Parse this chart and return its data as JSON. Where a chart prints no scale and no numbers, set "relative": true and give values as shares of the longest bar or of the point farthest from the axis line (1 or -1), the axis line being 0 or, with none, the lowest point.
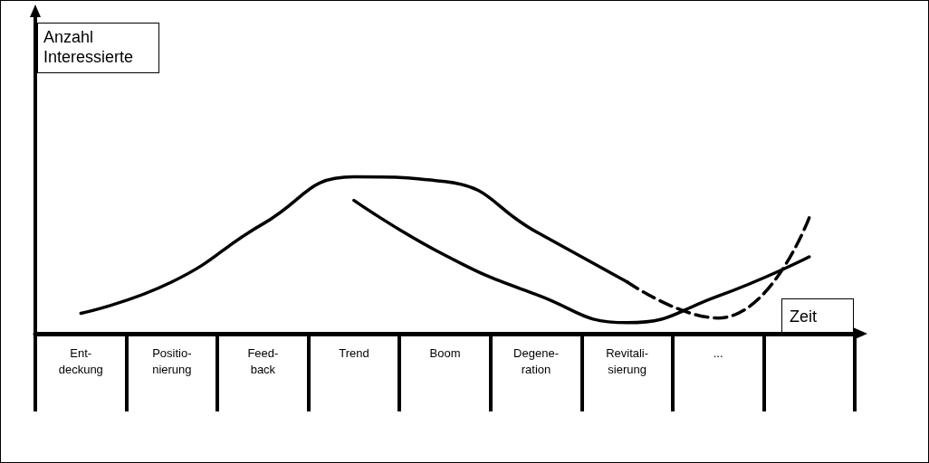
{
  "chart_data": {
    "type": "line",
    "relative": true,
    "xlabel": "Zeit",
    "annotations": [
      "Anzahl Interessierte"
    ],
    "categories": [
      "Ent-\ndeckung",
      "Positio-\nnierung",
      "Feed-\nback",
      "Trend",
      "Boom",
      "Degene-\nration",
      "Revitali-\nsierung",
      "...",
      null
    ],
    "series": [
      {
        "color": "#000000",
        "line_style": "solid",
        "values": [
          0.13,
          0.33,
          0.7,
          1.0,
          0.97,
          0.65,
          0.33,
          null,
          null
        ]
      },
      {
        "color": "#000000",
        "line_style": "dashed",
        "values": [
          null,
          null,
          null,
          null,
          null,
          null,
          0.33,
          0.1,
          0.74
        ]
      },
      {
        "color": "#000000",
        "line_style": "solid",
        "values": [
          null,
          null,
          null,
          0.85,
          0.5,
          0.25,
          0.07,
          0.24,
          0.49
        ]
      }
    ],
    "grid": false,
    "marker": "none"
  }
}
